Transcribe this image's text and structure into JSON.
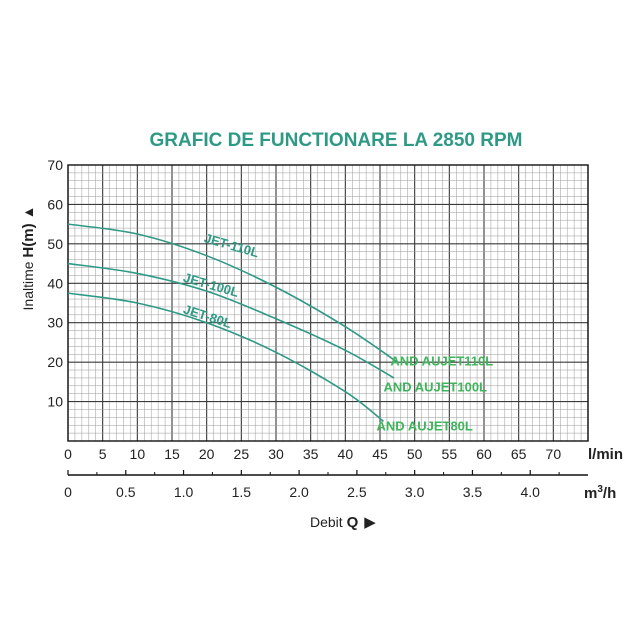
{
  "colors": {
    "title": "#2e9a86",
    "curve": "#2e9a86",
    "curve_label": "#2e9a86",
    "model_label": "#3fb45a",
    "grid_major": "#3a3a3a",
    "grid_minor": "#9a9a9a",
    "axis": "#111111",
    "text": "#222222"
  },
  "chart_data": {
    "type": "line",
    "title": "GRAFIC DE FUNCTIONARE LA 2850 RPM",
    "ylabel_text": "Inaltime ",
    "ylabel_bold": "H(m)",
    "ylabel_arrow": "▲",
    "ylim": [
      0,
      70
    ],
    "yticks": [
      "10",
      "20",
      "30",
      "40",
      "50",
      "60",
      "70"
    ],
    "x_flow_unit": "l/min",
    "xlim_flow": [
      0,
      75
    ],
    "xticks_flow": [
      "0",
      "5",
      "10",
      "15",
      "20",
      "25",
      "30",
      "35",
      "40",
      "45",
      "50",
      "55",
      "60",
      "65",
      "70"
    ],
    "x_m3h_unit_base": "m",
    "x_m3h_unit_sup": "3",
    "x_m3h_unit_tail": "/h",
    "xticks_m3h": [
      "0",
      "0.5",
      "1.0",
      "1.5",
      "2.0",
      "2.5",
      "3.0",
      "3.5",
      "4.0"
    ],
    "xlabel_text": "Debit ",
    "xlabel_bold": "Q",
    "xlabel_arrow": "▶",
    "grid": true,
    "series": [
      {
        "name": "JET-110L",
        "model": "AND AUJET110L",
        "x": [
          0,
          10,
          20,
          30,
          40,
          47.5
        ],
        "y": [
          55,
          52.5,
          47,
          39,
          29,
          20
        ]
      },
      {
        "name": "JET-100L",
        "model": "AND AUJET100L",
        "x": [
          0,
          10,
          20,
          30,
          40,
          47
        ],
        "y": [
          45,
          42.5,
          38,
          31,
          23,
          16
        ]
      },
      {
        "name": "JET-80L",
        "model": "AND AUJET80L",
        "x": [
          0,
          10,
          20,
          30,
          40,
          45.5
        ],
        "y": [
          37.5,
          35,
          30,
          22.5,
          12.5,
          5
        ]
      }
    ]
  }
}
